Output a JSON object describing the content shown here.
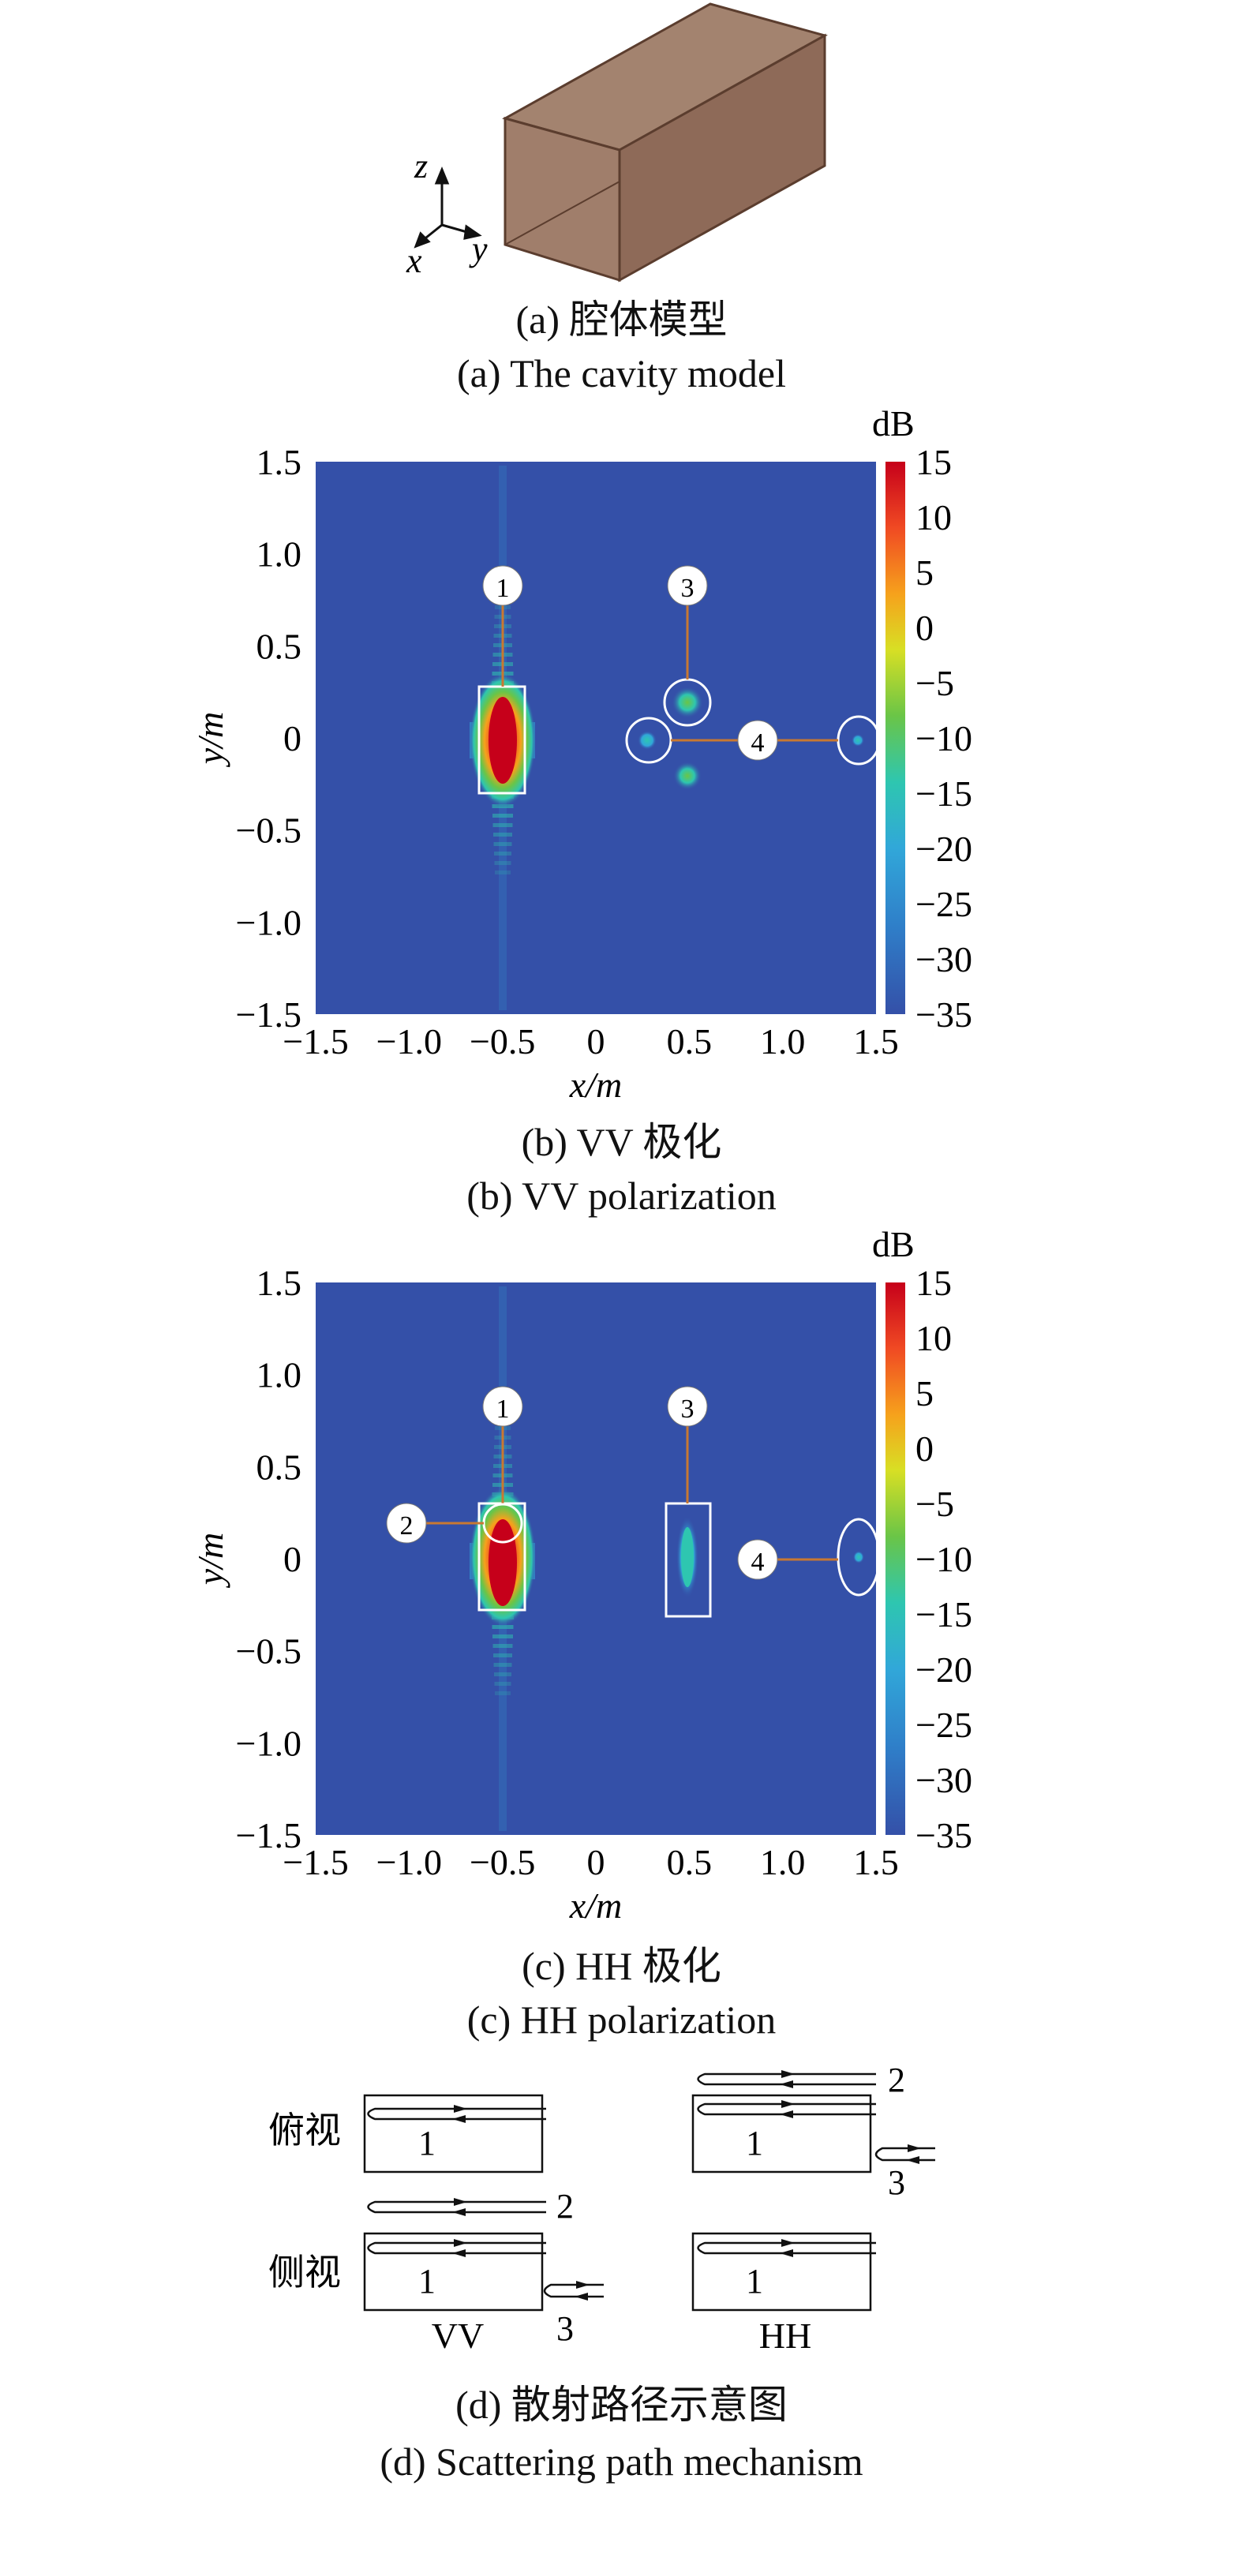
{
  "figure_a": {
    "axes": {
      "z": "z",
      "x": "x",
      "y": "y"
    },
    "caption_cn": "(a) 腔体模型",
    "caption_en": "(a) The cavity model"
  },
  "panel_b": {
    "caption_cn": "(b) VV 极化",
    "caption_en": "(b) VV polarization",
    "x_axis_label": "x/m",
    "y_axis_label": "y/m",
    "colorbar_unit": "dB",
    "markers": [
      "1",
      "3",
      "4"
    ]
  },
  "panel_c": {
    "caption_cn": "(c) HH 极化",
    "caption_en": "(c) HH polarization",
    "x_axis_label": "x/m",
    "y_axis_label": "y/m",
    "colorbar_unit": "dB",
    "markers": [
      "1",
      "2",
      "3",
      "4"
    ]
  },
  "panel_d": {
    "row_labels": [
      "俯视",
      "侧视"
    ],
    "col_labels": [
      "VV",
      "HH"
    ],
    "path_numbers": [
      "1",
      "2",
      "3"
    ],
    "caption_cn": "(d) 散射路径示意图",
    "caption_en": "(d) Scattering path mechanism"
  },
  "chart_data": [
    {
      "type": "heatmap",
      "name": "VV",
      "x_ticks": [
        "−1.5",
        "−1.0",
        "−0.5",
        "0",
        "0.5",
        "1.0",
        "1.5"
      ],
      "y_ticks": [
        "1.5",
        "1.0",
        "0.5",
        "0",
        "−0.5",
        "−1.0",
        "−1.5"
      ],
      "xlim": [
        -1.5,
        1.5
      ],
      "ylim": [
        -1.5,
        1.5
      ],
      "colorbar_ticks": [
        "15",
        "10",
        "5",
        "0",
        "−5",
        "−10",
        "−15",
        "−20",
        "−25",
        "−30",
        "−35"
      ],
      "clim": [
        -35,
        15
      ],
      "scatterers": [
        {
          "id": "1",
          "x": -0.5,
          "y": 0.0,
          "peak_db": 15
        },
        {
          "id": "3",
          "x": 0.5,
          "y": 0.2,
          "peak_db": -5
        },
        {
          "id": "3",
          "x": 0.5,
          "y": -0.2,
          "peak_db": -5
        },
        {
          "id": "4",
          "x": 0.28,
          "y": 0.0,
          "peak_db": -20
        },
        {
          "id": "4",
          "x": 1.45,
          "y": 0.0,
          "peak_db": -25
        }
      ]
    },
    {
      "type": "heatmap",
      "name": "HH",
      "x_ticks": [
        "−1.5",
        "−1.0",
        "−0.5",
        "0",
        "0.5",
        "1.0",
        "1.5"
      ],
      "y_ticks": [
        "1.5",
        "1.0",
        "0.5",
        "0",
        "−0.5",
        "−1.0",
        "−1.5"
      ],
      "xlim": [
        -1.5,
        1.5
      ],
      "ylim": [
        -1.5,
        1.5
      ],
      "colorbar_ticks": [
        "15",
        "10",
        "5",
        "0",
        "−5",
        "−10",
        "−15",
        "−20",
        "−25",
        "−30",
        "−35"
      ],
      "clim": [
        -35,
        15
      ],
      "scatterers": [
        {
          "id": "1",
          "x": -0.5,
          "y": 0.0,
          "peak_db": 15
        },
        {
          "id": "2",
          "x": -0.5,
          "y": 0.18,
          "peak_db": 5
        },
        {
          "id": "3",
          "x": 0.5,
          "y": 0.0,
          "peak_db": -15
        },
        {
          "id": "4",
          "x": 1.45,
          "y": 0.0,
          "peak_db": -25
        }
      ]
    }
  ],
  "colors": {
    "background_field": "#3450a8",
    "colorbar": [
      "#c6001a",
      "#f04a23",
      "#f6a21c",
      "#d8df24",
      "#6ac547",
      "#2ec6b0",
      "#31a7d9",
      "#2f7fc9",
      "#3450a8"
    ],
    "marker_line": "#c87832"
  }
}
